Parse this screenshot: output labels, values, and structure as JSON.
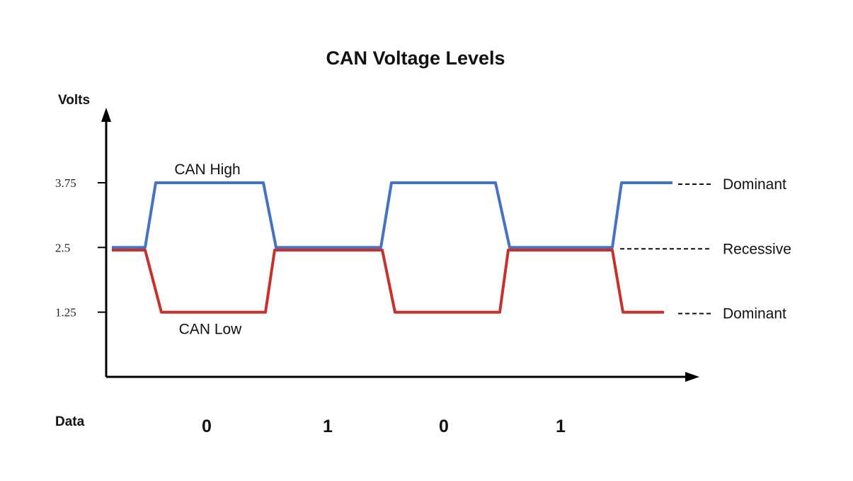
{
  "colors": {
    "can_high": "#4472C4",
    "can_low": "#C9302C",
    "axis": "#000000",
    "background": "#ffffff"
  },
  "chart_data": {
    "type": "line",
    "title": "CAN Voltage Levels",
    "ylabel": "Volts",
    "xlabel": "Data",
    "y_ticks": [
      {
        "value": 3.75,
        "label": "3.75"
      },
      {
        "value": 2.5,
        "label": "2.5"
      },
      {
        "value": 1.25,
        "label": "1.25"
      }
    ],
    "ylim": [
      0,
      5.2
    ],
    "bits": [
      "0",
      "1",
      "0",
      "1"
    ],
    "series": [
      {
        "name": "CAN High",
        "levels": [
          2.5,
          3.75,
          2.5,
          3.75,
          2.5,
          3.75
        ]
      },
      {
        "name": "CAN Low",
        "levels": [
          2.45,
          1.25,
          2.45,
          1.25,
          2.45,
          1.25
        ]
      }
    ],
    "state_annotations": [
      {
        "label": "Dominant",
        "value": 3.75
      },
      {
        "label": "Recessive",
        "value": 2.5
      },
      {
        "label": "Dominant",
        "value": 1.25
      }
    ],
    "grid": false
  }
}
